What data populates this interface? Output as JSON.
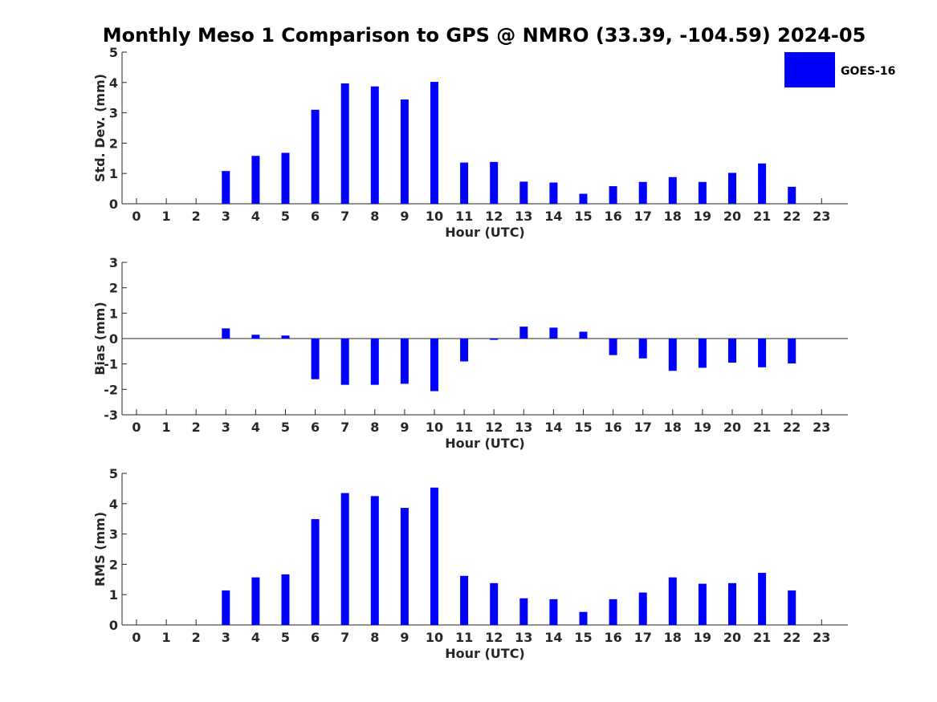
{
  "title": "Monthly Meso 1 Comparison to GPS @ NMRO (33.39, -104.59) 2024-05",
  "legend": {
    "label": "GOES-16",
    "color": "#0000ff",
    "placement": "top-right"
  },
  "chart_data": [
    {
      "type": "bar",
      "panel": "std-dev",
      "xlabel": "Hour (UTC)",
      "ylabel": "Std. Dev. (mm)",
      "ylim": [
        0,
        5
      ],
      "yticks": [
        "0",
        "1",
        "2",
        "3",
        "4",
        "5"
      ],
      "categories": [
        "0",
        "1",
        "2",
        "3",
        "4",
        "5",
        "6",
        "7",
        "8",
        "9",
        "10",
        "11",
        "12",
        "13",
        "14",
        "15",
        "16",
        "17",
        "18",
        "19",
        "20",
        "21",
        "22",
        "23"
      ],
      "series": [
        {
          "name": "GOES-16",
          "color": "#0000ff",
          "values": [
            null,
            null,
            null,
            1.08,
            1.58,
            1.68,
            3.1,
            3.97,
            3.87,
            3.44,
            4.02,
            1.36,
            1.38,
            0.73,
            0.7,
            0.33,
            0.58,
            0.72,
            0.88,
            0.72,
            1.02,
            1.33,
            0.56,
            null
          ]
        }
      ]
    },
    {
      "type": "bar",
      "panel": "bias",
      "xlabel": "Hour (UTC)",
      "ylabel": "Bias (mm)",
      "ylim": [
        -3,
        3
      ],
      "yticks": [
        "-3",
        "-2",
        "-1",
        "0",
        "1",
        "2",
        "3"
      ],
      "categories": [
        "0",
        "1",
        "2",
        "3",
        "4",
        "5",
        "6",
        "7",
        "8",
        "9",
        "10",
        "11",
        "12",
        "13",
        "14",
        "15",
        "16",
        "17",
        "18",
        "19",
        "20",
        "21",
        "22",
        "23"
      ],
      "series": [
        {
          "name": "GOES-16",
          "color": "#0000ff",
          "values": [
            null,
            null,
            null,
            0.4,
            0.15,
            0.12,
            -1.6,
            -1.82,
            -1.82,
            -1.78,
            -2.07,
            -0.9,
            -0.05,
            0.47,
            0.43,
            0.27,
            -0.65,
            -0.78,
            -1.27,
            -1.15,
            -0.95,
            -1.13,
            -0.98,
            null
          ]
        }
      ]
    },
    {
      "type": "bar",
      "panel": "rms",
      "xlabel": "Hour (UTC)",
      "ylabel": "RMS (mm)",
      "ylim": [
        0,
        5
      ],
      "yticks": [
        "0",
        "1",
        "2",
        "3",
        "4",
        "5"
      ],
      "categories": [
        "0",
        "1",
        "2",
        "3",
        "4",
        "5",
        "6",
        "7",
        "8",
        "9",
        "10",
        "11",
        "12",
        "13",
        "14",
        "15",
        "16",
        "17",
        "18",
        "19",
        "20",
        "21",
        "22",
        "23"
      ],
      "series": [
        {
          "name": "GOES-16",
          "color": "#0000ff",
          "values": [
            null,
            null,
            null,
            1.14,
            1.57,
            1.67,
            3.49,
            4.35,
            4.25,
            3.86,
            4.53,
            1.62,
            1.38,
            0.88,
            0.85,
            0.43,
            0.85,
            1.07,
            1.57,
            1.36,
            1.38,
            1.72,
            1.14,
            null
          ]
        }
      ]
    }
  ]
}
